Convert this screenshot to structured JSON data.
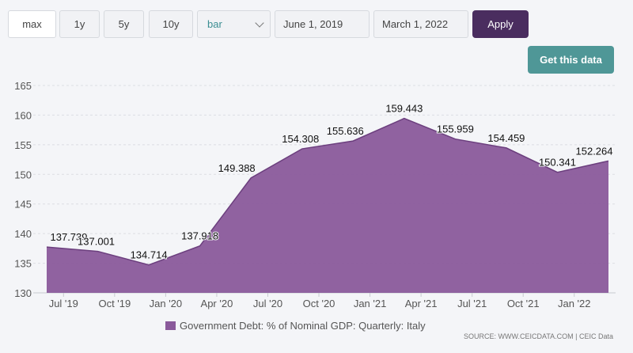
{
  "toolbar": {
    "ranges": [
      "max",
      "1y",
      "5y",
      "10y"
    ],
    "chart_type": "bar",
    "start_date": "June 1, 2019",
    "end_date": "March 1, 2022",
    "apply_label": "Apply",
    "get_data_label": "Get this data"
  },
  "colors": {
    "area": "#8a5a9b",
    "line": "#6c3f7e",
    "apply": "#4a2d5f",
    "get_data": "#4f9797"
  },
  "source": "SOURCE: WWW.CEICDATA.COM | CEIC Data",
  "chart_data": {
    "type": "area",
    "title": "",
    "xlabel": "",
    "ylabel": "",
    "ylim": [
      130,
      165
    ],
    "yticks": [
      130,
      135,
      140,
      145,
      150,
      155,
      160,
      165
    ],
    "grid": true,
    "legend_position": "bottom",
    "x": [
      "Jun 2019",
      "Sep 2019",
      "Dec 2019",
      "Mar 2020",
      "Jun 2020",
      "Sep 2020",
      "Dec 2020",
      "Mar 2021",
      "Jun 2021",
      "Sep 2021",
      "Dec 2021",
      "Mar 2022"
    ],
    "xtick_labels": [
      "Jul '19",
      "Oct '19",
      "Jan '20",
      "Apr '20",
      "Jul '20",
      "Oct '20",
      "Jan '21",
      "Apr '21",
      "Jul '21",
      "Oct '21",
      "Jan '22"
    ],
    "series": [
      {
        "name": "Government Debt: % of Nominal GDP: Quarterly: Italy",
        "values": [
          137.739,
          137.001,
          134.714,
          137.918,
          149.388,
          154.308,
          155.636,
          159.443,
          155.959,
          154.459,
          150.341,
          152.264
        ],
        "labels": [
          "137.739",
          "137.001",
          "134.714",
          "137.918",
          "149.388",
          "154.308",
          "155.636",
          "159.443",
          "155.959",
          "154.459",
          "150.341",
          "152.264"
        ]
      }
    ]
  }
}
